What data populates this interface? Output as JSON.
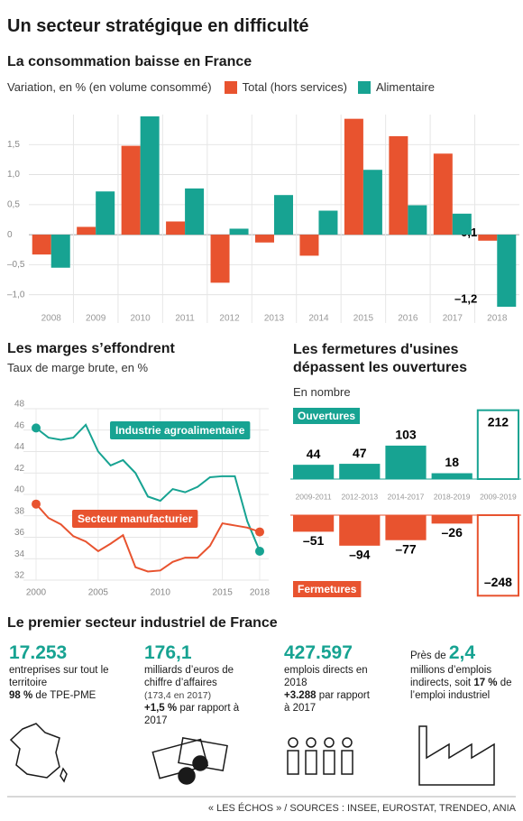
{
  "title": "Un secteur stratégique en difficulté",
  "chart_data": [
    {
      "type": "bar",
      "title": "La consommation baisse en France",
      "subtitle": "Variation, en % (en volume consommé)",
      "categories": [
        "2008",
        "2009",
        "2010",
        "2011",
        "2012",
        "2013",
        "2014",
        "2015",
        "2016",
        "2017",
        "2018"
      ],
      "series": [
        {
          "name": "Total (hors services)",
          "color": "#e8532f",
          "values": [
            -0.33,
            0.13,
            1.48,
            0.22,
            -0.8,
            -0.13,
            -0.35,
            1.93,
            1.64,
            1.35,
            -0.1
          ],
          "value_labels": [
            null,
            null,
            null,
            null,
            null,
            null,
            null,
            null,
            null,
            null,
            "–0,1"
          ]
        },
        {
          "name": "Alimentaire",
          "color": "#17a392",
          "values": [
            -0.55,
            0.72,
            1.97,
            0.77,
            0.1,
            0.66,
            0.4,
            1.08,
            0.49,
            0.35,
            -1.2
          ],
          "value_labels": [
            null,
            null,
            null,
            null,
            null,
            null,
            null,
            null,
            null,
            null,
            "–1,2"
          ]
        }
      ],
      "ylim": [
        -1.2,
        2
      ],
      "yticks": [
        {
          "value": -1,
          "label": "–1,0"
        },
        {
          "value": -0.5,
          "label": "–0,5"
        },
        0,
        {
          "value": 0.5,
          "label": "0,5"
        },
        {
          "value": 1,
          "label": "1,0"
        },
        {
          "value": 1.5,
          "label": "1,5"
        }
      ],
      "grid": true
    },
    {
      "type": "line",
      "title": "Les marges s’effondrent",
      "subtitle": "Taux de marge brute, en %",
      "x": [
        2000,
        2001,
        2002,
        2003,
        2004,
        2005,
        2006,
        2007,
        2008,
        2009,
        2010,
        2011,
        2012,
        2013,
        2014,
        2015,
        2016,
        2017,
        2018
      ],
      "series": [
        {
          "name": "Industrie agroalimentaire",
          "color": "#17a392",
          "values": [
            46.2,
            45.3,
            45.1,
            45.3,
            46.5,
            44.0,
            42.7,
            43.2,
            42.0,
            39.8,
            39.4,
            40.5,
            40.2,
            40.7,
            41.6,
            41.7,
            41.7,
            37.5,
            34.7
          ]
        },
        {
          "name": "Secteur manufacturier",
          "color": "#e8532f",
          "values": [
            39.1,
            37.8,
            37.2,
            36.1,
            35.6,
            34.7,
            35.4,
            36.2,
            33.2,
            32.8,
            32.9,
            33.7,
            34.1,
            34.1,
            35.2,
            37.3,
            37.1,
            36.9,
            36.5
          ]
        }
      ],
      "xlim": [
        2000,
        2018
      ],
      "xticks": [
        2000,
        2005,
        2010,
        2015,
        2018
      ],
      "ylim": [
        32,
        48
      ],
      "yticks": [
        32,
        34,
        36,
        38,
        40,
        42,
        44,
        46,
        48
      ],
      "grid": true
    },
    {
      "type": "diverging",
      "title": "Les fermetures d'usines dépassent les ouvertures",
      "subtitle": "En nombre",
      "categories": [
        "2009-2011",
        "2012-2013",
        "2014-2017",
        "2018-2019",
        "2009-2019"
      ],
      "outline": [
        false,
        false,
        false,
        false,
        true
      ],
      "series": [
        {
          "name": "Ouvertures",
          "color": "#17a392",
          "values": [
            44,
            47,
            103,
            18,
            212
          ]
        },
        {
          "name": "Fermetures",
          "color": "#e8532f",
          "values": [
            -51,
            -94,
            -77,
            -26,
            -248
          ],
          "value_labels": [
            "–51",
            "–94",
            "–77",
            "–26",
            "–248"
          ]
        }
      ]
    }
  ],
  "key_figures": {
    "title": "Le premier secteur industriel de France",
    "items": [
      {
        "figure": "17.253",
        "text": "entreprises sur tout le territoire",
        "strong": "98 %",
        "text2": "de TPE-PME"
      },
      {
        "figure": "176,1",
        "text": "milliards d’euros de chiffre d’affaires",
        "note": "(173,4 en 2017)",
        "strong": "+1,5 %",
        "text2": "par rapport à 2017"
      },
      {
        "figure": "427.597",
        "text": "emplois directs en 2018",
        "strong": "+3.288",
        "text2": "par rapport à 2017"
      },
      {
        "prefix": "Près de",
        "figure": "2,4",
        "text": "millions d’emplois indirects, soit",
        "strong": "17 %",
        "text2": "de l’emploi industriel"
      }
    ]
  },
  "source": "« LES ÉCHOS » / SOURCES : INSEE, EUROSTAT, TRENDEO, ANIA"
}
